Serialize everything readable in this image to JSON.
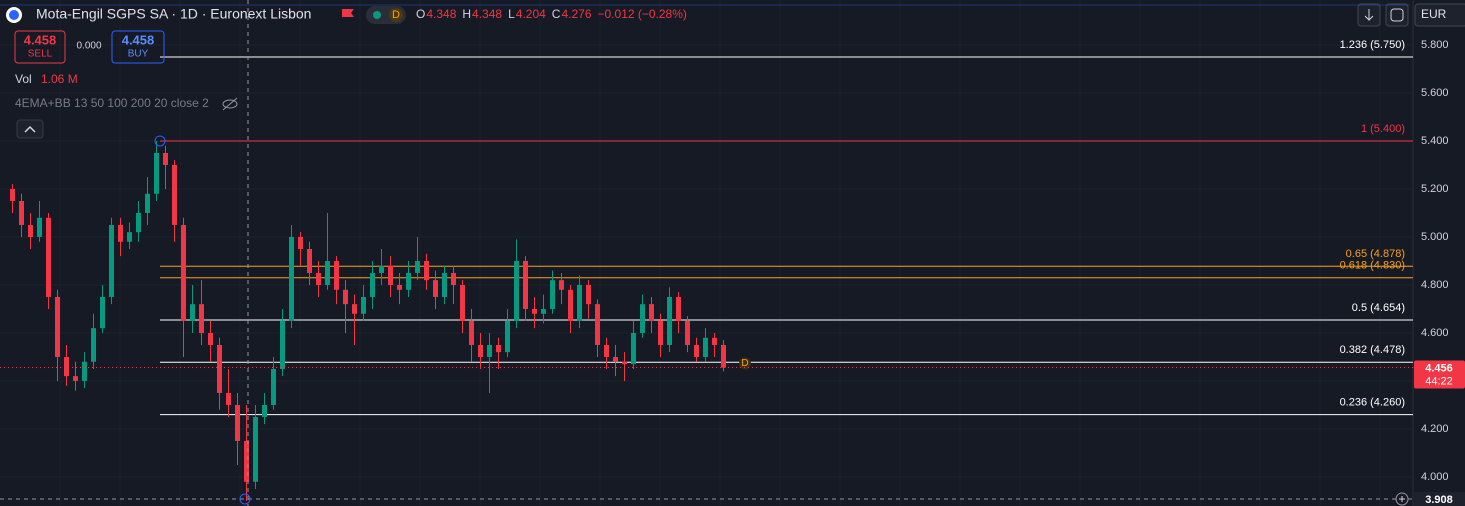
{
  "header": {
    "title": "Mota-Engil SGPS SA · 1D · Euronext Lisbon",
    "interval_badge": "D",
    "ohlc": [
      {
        "label": "O",
        "value": 4.348
      },
      {
        "label": "H",
        "value": 4.348
      },
      {
        "label": "L",
        "value": 4.204
      },
      {
        "label": "C",
        "value": 4.276
      }
    ],
    "change": "−0.012 (−0.28%)",
    "sell_price": "4.458",
    "sell_label": "SELL",
    "spread": "0.000",
    "buy_price": "4.458",
    "buy_label": "BUY",
    "volume_label": "Vol",
    "volume_value": "1.06 M",
    "indicator": "4EMA+BB 13 50 100 200 20 close 2",
    "currency": "EUR"
  },
  "chart_data": {
    "type": "candlestick",
    "up_color": "#089981",
    "down_color": "#f23645",
    "ylim": [
      3.879,
      5.9875
    ],
    "yticks": [
      {
        "value": 5.8,
        "label": "5.800"
      },
      {
        "value": 5.6,
        "label": "5.600"
      },
      {
        "value": 5.4,
        "label": "5.400"
      },
      {
        "value": 5.2,
        "label": "5.200"
      },
      {
        "value": 5.0,
        "label": "5.000"
      },
      {
        "value": 4.8,
        "label": "4.800"
      },
      {
        "value": 4.6,
        "label": "4.600"
      },
      {
        "value": 4.4,
        "label": "4.400"
      },
      {
        "value": 4.2,
        "label": "4.200"
      },
      {
        "value": 4.0,
        "label": "4.000"
      }
    ],
    "open": [
      5.2,
      5.15,
      5.05,
      5.0,
      5.08,
      4.75,
      4.5,
      4.42,
      4.4,
      4.48,
      4.62,
      4.75,
      5.05,
      4.98,
      5.02,
      5.1,
      5.18,
      5.35,
      5.3,
      5.05,
      4.65,
      4.72,
      4.6,
      4.55,
      4.35,
      4.3,
      4.15,
      3.98,
      4.25,
      4.3,
      4.45,
      4.65,
      5.0,
      4.95,
      4.85,
      4.8,
      4.9,
      4.78,
      4.72,
      4.68,
      4.75,
      4.85,
      4.88,
      4.8,
      4.78,
      4.85,
      4.9,
      4.82,
      4.75,
      4.85,
      4.8,
      4.65,
      4.55,
      4.5,
      4.55,
      4.52,
      4.65,
      4.9,
      4.7,
      4.68,
      4.7,
      4.82,
      4.78,
      4.65,
      4.8,
      4.72,
      4.55,
      4.5,
      4.48,
      4.47,
      4.6,
      4.72,
      4.65,
      4.55,
      4.75,
      4.65,
      4.55,
      4.5,
      4.58,
      4.55
    ],
    "high": [
      5.22,
      5.18,
      5.1,
      5.15,
      5.1,
      4.78,
      4.55,
      4.48,
      4.52,
      4.68,
      4.8,
      5.08,
      5.08,
      5.06,
      5.15,
      5.25,
      5.4,
      5.38,
      5.32,
      5.08,
      4.8,
      4.82,
      4.65,
      4.58,
      4.45,
      4.35,
      4.3,
      4.3,
      4.35,
      4.5,
      4.7,
      5.05,
      5.02,
      4.98,
      4.9,
      5.1,
      4.92,
      4.82,
      4.76,
      4.8,
      4.9,
      4.95,
      4.92,
      4.85,
      4.9,
      5.0,
      4.93,
      4.86,
      4.88,
      4.88,
      4.82,
      4.7,
      4.6,
      4.6,
      4.58,
      4.7,
      4.99,
      4.92,
      4.75,
      4.76,
      4.86,
      4.85,
      4.8,
      4.84,
      4.82,
      4.74,
      4.58,
      4.55,
      4.52,
      4.65,
      4.76,
      4.75,
      4.68,
      4.79,
      4.77,
      4.67,
      4.58,
      4.62,
      4.6,
      4.57
    ],
    "low": [
      5.1,
      5.0,
      4.95,
      4.98,
      4.7,
      4.4,
      4.38,
      4.36,
      4.37,
      4.45,
      4.6,
      4.72,
      4.92,
      4.95,
      4.98,
      5.05,
      5.15,
      5.2,
      4.98,
      4.5,
      4.6,
      4.55,
      4.48,
      4.28,
      4.25,
      4.05,
      3.9,
      3.95,
      4.22,
      4.28,
      4.42,
      4.62,
      4.88,
      4.8,
      4.75,
      4.78,
      4.72,
      4.6,
      4.55,
      4.65,
      4.7,
      4.8,
      4.75,
      4.72,
      4.75,
      4.82,
      4.78,
      4.7,
      4.72,
      4.72,
      4.6,
      4.48,
      4.45,
      4.35,
      4.45,
      4.5,
      4.62,
      4.65,
      4.62,
      4.64,
      4.68,
      4.72,
      4.6,
      4.62,
      4.66,
      4.5,
      4.45,
      4.42,
      4.4,
      4.45,
      4.58,
      4.6,
      4.5,
      4.52,
      4.6,
      4.52,
      4.48,
      4.48,
      4.5,
      4.44
    ],
    "close": [
      5.15,
      5.05,
      5.0,
      5.08,
      4.75,
      4.5,
      4.42,
      4.4,
      4.48,
      4.62,
      4.75,
      5.05,
      4.98,
      5.02,
      5.1,
      5.18,
      5.35,
      5.3,
      5.05,
      4.65,
      4.72,
      4.6,
      4.55,
      4.35,
      4.3,
      4.15,
      3.98,
      4.25,
      4.3,
      4.45,
      4.65,
      5.0,
      4.95,
      4.85,
      4.8,
      4.9,
      4.78,
      4.72,
      4.68,
      4.75,
      4.85,
      4.88,
      4.8,
      4.78,
      4.85,
      4.9,
      4.82,
      4.75,
      4.85,
      4.8,
      4.65,
      4.55,
      4.5,
      4.55,
      4.52,
      4.65,
      4.9,
      4.7,
      4.68,
      4.7,
      4.82,
      4.78,
      4.65,
      4.8,
      4.72,
      4.55,
      4.5,
      4.48,
      4.47,
      4.6,
      4.72,
      4.65,
      4.55,
      4.75,
      4.65,
      4.55,
      4.5,
      4.58,
      4.55,
      4.456
    ],
    "levels": [
      {
        "label": "1.236 (5.750)",
        "value": 5.75,
        "color": "#ffffff"
      },
      {
        "label": "1 (5.400)",
        "value": 5.4,
        "color": "#f23645"
      },
      {
        "label": "0.65 (4.878)",
        "value": 4.878,
        "color": "#f7a21b"
      },
      {
        "label": "0.618 (4.830)",
        "value": 4.83,
        "color": "#f7a21b"
      },
      {
        "label": "0.5 (4.654)",
        "value": 4.654,
        "color": "#ffffff"
      },
      {
        "label": "0.382 (4.478)",
        "value": 4.478,
        "color": "#ffffff"
      },
      {
        "label": "0.236 (4.260)",
        "value": 4.26,
        "color": "#ffffff"
      }
    ],
    "last_price": 4.456,
    "countdown": "44:22",
    "crosshair_price": 3.908
  }
}
